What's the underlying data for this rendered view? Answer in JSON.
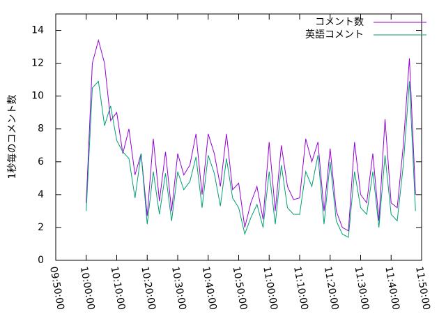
{
  "chart_data": {
    "type": "line",
    "y_label": "1秒毎のコメント数",
    "x": [
      "10:00:00",
      "10:02:00",
      "10:04:00",
      "10:06:00",
      "10:08:00",
      "10:10:00",
      "10:12:00",
      "10:14:00",
      "10:16:00",
      "10:18:00",
      "10:20:00",
      "10:22:00",
      "10:24:00",
      "10:26:00",
      "10:28:00",
      "10:30:00",
      "10:32:00",
      "10:34:00",
      "10:36:00",
      "10:38:00",
      "10:40:00",
      "10:42:00",
      "10:44:00",
      "10:46:00",
      "10:48:00",
      "10:50:00",
      "10:52:00",
      "10:54:00",
      "10:56:00",
      "10:58:00",
      "11:00:00",
      "11:02:00",
      "11:04:00",
      "11:06:00",
      "11:08:00",
      "11:10:00",
      "11:12:00",
      "11:14:00",
      "11:16:00",
      "11:18:00",
      "11:20:00",
      "11:22:00",
      "11:24:00",
      "11:26:00",
      "11:28:00",
      "11:30:00",
      "11:32:00",
      "11:34:00",
      "11:36:00",
      "11:38:00",
      "11:40:00",
      "11:42:00",
      "11:44:00",
      "11:46:00",
      "11:48:00"
    ],
    "series": [
      {
        "name": "コメント数",
        "color": "#9400d3",
        "values": [
          3.5,
          12.0,
          13.4,
          12.0,
          8.5,
          9.0,
          6.5,
          8.0,
          5.2,
          6.5,
          2.7,
          7.4,
          3.6,
          6.6,
          3.0,
          6.5,
          5.2,
          5.8,
          7.7,
          4.0,
          7.7,
          6.5,
          4.5,
          7.7,
          4.3,
          4.7,
          2.0,
          3.5,
          4.5,
          2.5,
          7.2,
          3.0,
          7.0,
          4.5,
          3.7,
          3.8,
          7.4,
          6.0,
          7.2,
          3.0,
          6.8,
          3.0,
          2.0,
          1.8,
          7.2,
          4.0,
          3.5,
          6.5,
          2.4,
          8.6,
          3.5,
          3.2,
          7.0,
          12.3,
          4.0
        ]
      },
      {
        "name": "英語コメント",
        "color": "#009e73",
        "values": [
          3.0,
          10.5,
          10.9,
          8.2,
          9.4,
          7.3,
          6.6,
          6.2,
          3.8,
          6.5,
          2.2,
          5.4,
          2.8,
          5.3,
          2.4,
          5.4,
          4.3,
          4.8,
          6.3,
          3.2,
          6.4,
          5.3,
          3.3,
          6.2,
          3.8,
          3.2,
          1.6,
          2.6,
          3.4,
          2.0,
          5.4,
          2.2,
          5.8,
          3.2,
          2.8,
          2.8,
          5.4,
          4.5,
          6.4,
          2.2,
          6.0,
          2.4,
          1.6,
          1.4,
          5.4,
          3.2,
          2.8,
          5.4,
          2.0,
          6.4,
          2.8,
          2.4,
          5.8,
          10.9,
          3.0
        ]
      }
    ],
    "xlim": [
      "09:50:00",
      "11:50:00"
    ],
    "xticks": [
      "09:50:00",
      "10:00:00",
      "10:10:00",
      "10:20:00",
      "10:30:00",
      "10:40:00",
      "10:50:00",
      "11:00:00",
      "11:10:00",
      "11:20:00",
      "11:30:00",
      "11:40:00",
      "11:50:00"
    ],
    "ylim": [
      0,
      15
    ],
    "yticks": [
      0,
      2,
      4,
      6,
      8,
      10,
      12,
      14
    ],
    "legend": "top-right"
  }
}
